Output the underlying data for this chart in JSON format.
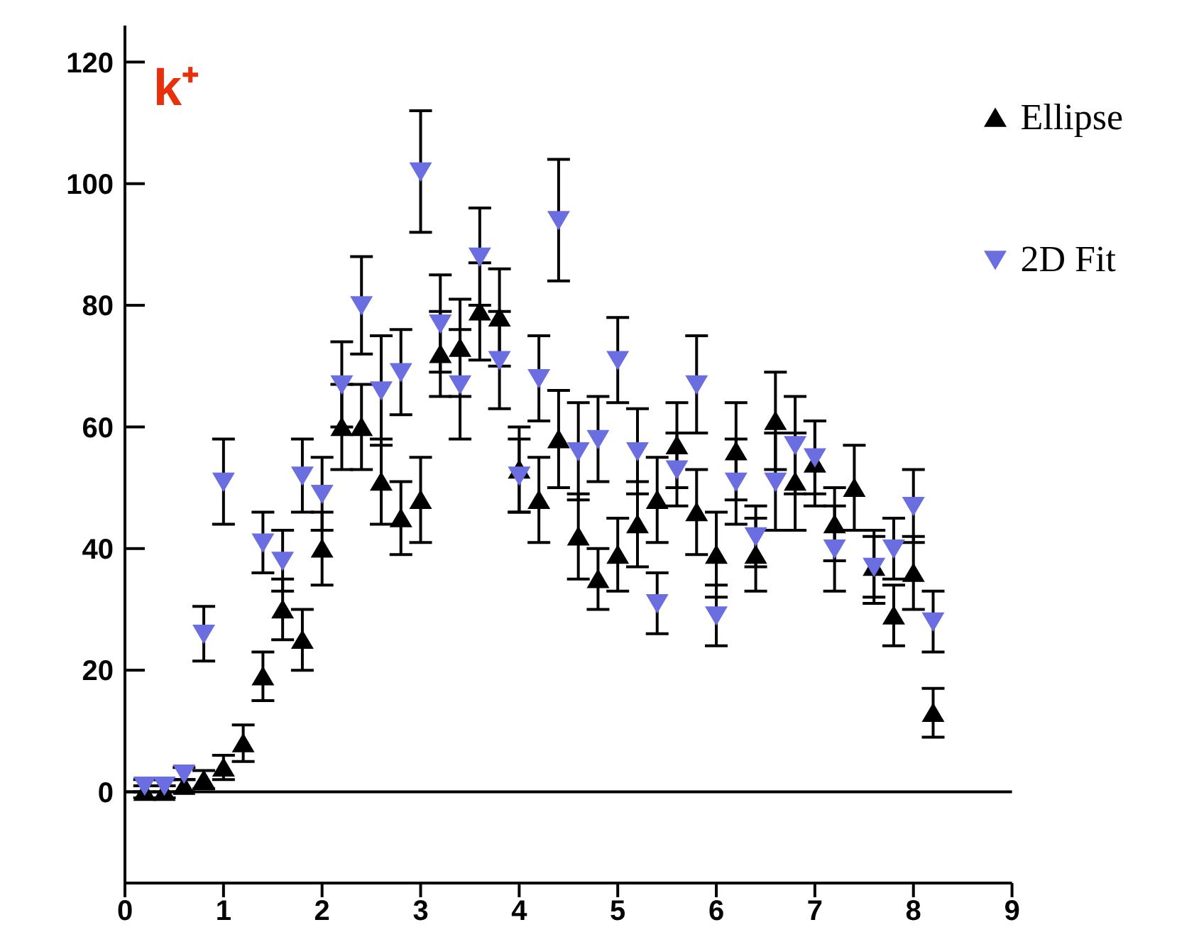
{
  "chart_data": {
    "type": "scatter",
    "x": [
      0.2,
      0.4,
      0.6,
      0.8,
      1.0,
      1.2,
      1.4,
      1.6,
      1.8,
      2.0,
      2.2,
      2.4,
      2.6,
      2.8,
      3.0,
      3.2,
      3.4,
      3.6,
      3.8,
      4.0,
      4.2,
      4.4,
      4.6,
      4.8,
      5.0,
      5.2,
      5.4,
      5.6,
      5.8,
      6.0,
      6.2,
      6.4,
      6.6,
      6.8,
      7.0,
      7.2,
      7.4,
      7.6,
      7.8,
      8.0,
      8.2
    ],
    "series": [
      {
        "name": "Ellipse",
        "color": "#000000",
        "marker": "triangle",
        "values": [
          0,
          0,
          1,
          2,
          4,
          8,
          19,
          30,
          25,
          40,
          60,
          60,
          51,
          45,
          48,
          72,
          73,
          79,
          78,
          53,
          48,
          58,
          42,
          35,
          39,
          44,
          48,
          57,
          46,
          39,
          56,
          39,
          61,
          51,
          54,
          44,
          50,
          37,
          29,
          36,
          13
        ],
        "errors": [
          1,
          1,
          1,
          1.5,
          2,
          3,
          4,
          5,
          5,
          6,
          7,
          7,
          7,
          6,
          7,
          7,
          8,
          8,
          8,
          7,
          7,
          8,
          7,
          5,
          6,
          7,
          7,
          7,
          7,
          7,
          8,
          6,
          8,
          8,
          7,
          6,
          7,
          6,
          5,
          6,
          4
        ]
      },
      {
        "name": "2D Fit",
        "color": "#6a6ee0",
        "marker": "triangle",
        "values": [
          1,
          1,
          3,
          26,
          51,
          null,
          41,
          38,
          52,
          49,
          67,
          80,
          66,
          69,
          102,
          77,
          67,
          88,
          71,
          52,
          68,
          94,
          56,
          58,
          71,
          56,
          31,
          53,
          67,
          29,
          51,
          42,
          51,
          57,
          55,
          40,
          null,
          37,
          40,
          47,
          28
        ],
        "errors": [
          1,
          1,
          1,
          4.5,
          7,
          null,
          5,
          5,
          6,
          6,
          7,
          8,
          9,
          7,
          10,
          8,
          9,
          8,
          8,
          6,
          7,
          10,
          8,
          7,
          7,
          7,
          5,
          6,
          8,
          5,
          7,
          5,
          8,
          8,
          6,
          7,
          null,
          5,
          5,
          6,
          5
        ]
      }
    ],
    "xlim": [
      0,
      9
    ],
    "xticks": [
      0,
      1,
      2,
      3,
      4,
      5,
      6,
      7,
      8,
      9
    ],
    "ylim": [
      -15,
      126
    ],
    "yticks": [
      0,
      20,
      40,
      60,
      80,
      100,
      120
    ],
    "ref_lines": [
      {
        "axis": "y",
        "value": 0
      }
    ],
    "annotations": [
      "k⁺"
    ],
    "legend": "top right"
  }
}
